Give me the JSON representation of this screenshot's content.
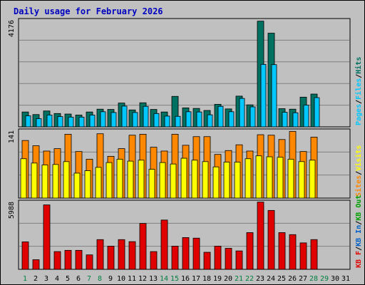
{
  "title": "Daily usage for February 2026",
  "colors": {
    "background": "#c0c0c0",
    "title": "#0000c0",
    "hits": "#007060",
    "files": "#00c8ff",
    "pages": "#00c8ff",
    "visits": "#ffff00",
    "sites": "#ff8800",
    "kb_in": "#0060c8",
    "kb_out": "#00a000",
    "kb_f": "#e00000",
    "gridline": "#808080",
    "weekend_day": "#008040",
    "weekday_day": "#000000"
  },
  "chart_data": [
    {
      "type": "bar",
      "title": "Daily usage for February 2026",
      "ylabel_max": "4176",
      "ylim": [
        0,
        4176
      ],
      "legend": [
        "Pages",
        "Files",
        "Hits"
      ],
      "legend_separator": "/",
      "categories": [
        "1",
        "2",
        "3",
        "4",
        "5",
        "6",
        "7",
        "8",
        "9",
        "10",
        "11",
        "12",
        "13",
        "14",
        "15",
        "16",
        "17",
        "18",
        "19",
        "20",
        "21",
        "22",
        "23",
        "24",
        "25",
        "26",
        "27",
        "28",
        "29",
        "30",
        "31"
      ],
      "series": [
        {
          "name": "Hits",
          "values": [
            580,
            480,
            620,
            520,
            500,
            460,
            580,
            690,
            680,
            930,
            660,
            940,
            680,
            580,
            1190,
            740,
            720,
            640,
            880,
            700,
            1200,
            860,
            4130,
            3660,
            710,
            690,
            1160,
            1280,
            null,
            null,
            null
          ]
        },
        {
          "name": "Files",
          "values": [
            430,
            320,
            460,
            400,
            380,
            380,
            460,
            590,
            560,
            810,
            560,
            800,
            520,
            420,
            410,
            590,
            580,
            470,
            800,
            590,
            1110,
            780,
            2440,
            2430,
            570,
            550,
            850,
            1140,
            null,
            null,
            null
          ]
        }
      ]
    },
    {
      "type": "bar",
      "ylabel_max": "141",
      "ylim": [
        0,
        141
      ],
      "legend": [
        "Visits",
        "Sites"
      ],
      "legend_separator": "/",
      "categories": [
        "1",
        "2",
        "3",
        "4",
        "5",
        "6",
        "7",
        "8",
        "9",
        "10",
        "11",
        "12",
        "13",
        "14",
        "15",
        "16",
        "17",
        "18",
        "19",
        "20",
        "21",
        "22",
        "23",
        "24",
        "25",
        "26",
        "27",
        "28",
        "29",
        "30",
        "31"
      ],
      "series": [
        {
          "name": "Visits",
          "values": [
            82,
            73,
            69,
            70,
            76,
            52,
            57,
            64,
            74,
            81,
            77,
            79,
            60,
            74,
            71,
            83,
            79,
            76,
            65,
            75,
            75,
            82,
            88,
            86,
            85,
            81,
            76,
            79,
            null,
            null,
            null
          ]
        },
        {
          "name": "Sites",
          "values": [
            120,
            109,
            98,
            103,
            133,
            97,
            81,
            134,
            87,
            103,
            131,
            133,
            106,
            98,
            133,
            110,
            128,
            128,
            91,
            99,
            111,
            98,
            132,
            131,
            122,
            139,
            97,
            127,
            null,
            null,
            null
          ]
        }
      ]
    },
    {
      "type": "bar",
      "ylabel_max": "5988",
      "ylim": [
        0,
        5988
      ],
      "legend": [
        "KB F",
        "KB In",
        "KB Out"
      ],
      "legend_separator": "/",
      "categories": [
        "1",
        "2",
        "3",
        "4",
        "5",
        "6",
        "7",
        "8",
        "9",
        "10",
        "11",
        "12",
        "13",
        "14",
        "15",
        "16",
        "17",
        "18",
        "19",
        "20",
        "21",
        "22",
        "23",
        "24",
        "25",
        "26",
        "27",
        "28",
        "29",
        "30",
        "31"
      ],
      "series": [
        {
          "name": "KB F",
          "values": [
            2430,
            850,
            5700,
            1570,
            1680,
            1680,
            1280,
            2630,
            2050,
            2630,
            2450,
            4060,
            1570,
            4360,
            2050,
            2810,
            2760,
            1510,
            2050,
            1860,
            1630,
            3250,
            5950,
            5210,
            3250,
            3070,
            2340,
            2630,
            null,
            null,
            null
          ]
        }
      ]
    }
  ],
  "x_axis": {
    "labels": [
      "1",
      "2",
      "3",
      "4",
      "5",
      "6",
      "7",
      "8",
      "9",
      "10",
      "11",
      "12",
      "13",
      "14",
      "15",
      "16",
      "17",
      "18",
      "19",
      "20",
      "21",
      "22",
      "23",
      "24",
      "25",
      "26",
      "27",
      "28",
      "29",
      "30",
      "31"
    ],
    "weekend_days": [
      1,
      7,
      8,
      14,
      15,
      21,
      22,
      28,
      29
    ]
  }
}
